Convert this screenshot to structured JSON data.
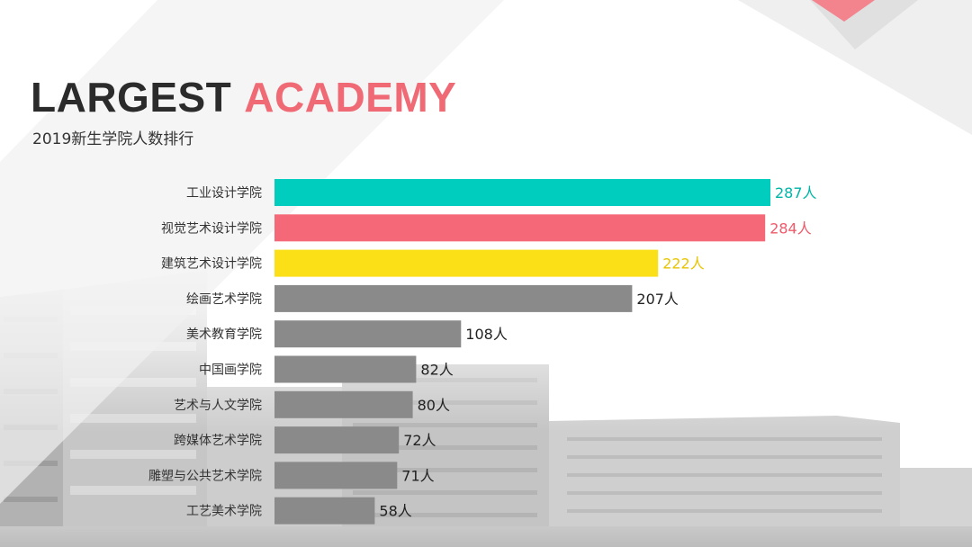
{
  "header": {
    "title_part1": "LARGEST",
    "title_part2": "ACADEMY",
    "subtitle": "2019新生学院人数排行"
  },
  "colors": {
    "title_dark": "#2b2b2b",
    "accent_pink": "#f06a76",
    "bar_teal": "#00cdbd",
    "bar_pink": "#f56877",
    "bar_yellow": "#fbe018",
    "bar_gray": "#8a8a8a"
  },
  "chart_data": {
    "type": "bar",
    "orientation": "horizontal",
    "categories": [
      "工业设计学院",
      "视觉艺术设计学院",
      "建筑艺术设计学院",
      "绘画艺术学院",
      "美术教育学院",
      "中国画学院",
      "艺术与人文学院",
      "跨媒体艺术学院",
      "雕塑与公共艺术学院",
      "工艺美术学院"
    ],
    "values": [
      287,
      284,
      222,
      207,
      108,
      82,
      80,
      72,
      71,
      58
    ],
    "value_labels": [
      "287人",
      "284人",
      "222人",
      "207人",
      "108人",
      "82人",
      "80人",
      "72人",
      "71人",
      "58人"
    ],
    "bar_colors": [
      "#00cdbd",
      "#f56877",
      "#fbe018",
      "#8a8a8a",
      "#8a8a8a",
      "#8a8a8a",
      "#8a8a8a",
      "#8a8a8a",
      "#8a8a8a",
      "#8a8a8a"
    ],
    "label_colors": [
      "#00b5a7",
      "#f05a6a",
      "#e8c400",
      "#222222",
      "#222222",
      "#222222",
      "#222222",
      "#222222",
      "#222222",
      "#222222"
    ],
    "title": "LARGEST ACADEMY",
    "subtitle": "2019新生学院人数排行",
    "xlim": [
      0,
      287
    ],
    "grid": false,
    "legend": "none"
  }
}
